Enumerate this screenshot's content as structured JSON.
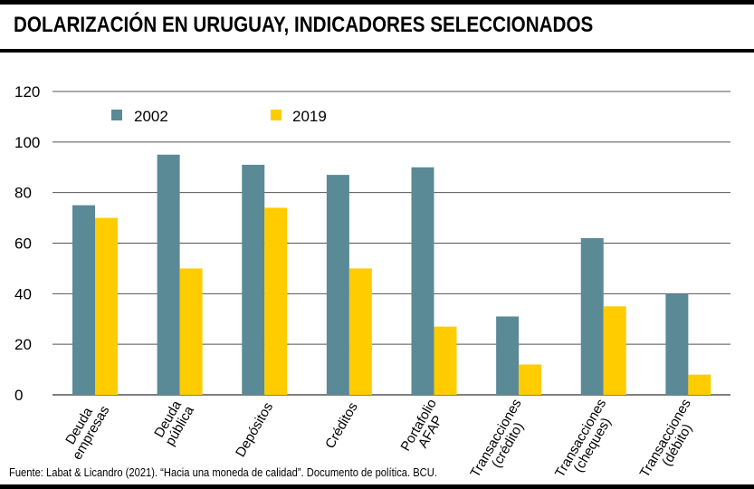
{
  "title": "DOLARIZACIÓN EN URUGUAY, INDICADORES SELECCIONADOS",
  "source": "Fuente: Labat & Licandro (2021). “Hacia una moneda de calidad”. Documento de política. BCU.",
  "colors": {
    "series_2002": "#5a8a96",
    "series_2019": "#ffcc00",
    "grid": "#555555"
  },
  "chart_data": {
    "type": "bar",
    "title": "DOLARIZACIÓN EN URUGUAY, INDICADORES SELECCIONADOS",
    "xlabel": "",
    "ylabel": "",
    "ylim": [
      0,
      120
    ],
    "yticks": [
      0,
      20,
      40,
      60,
      80,
      100,
      120
    ],
    "grid": true,
    "legend_position": "top-left",
    "categories": [
      [
        "Deuda",
        "empresas"
      ],
      [
        "Deuda",
        "pública"
      ],
      [
        "Depósitos"
      ],
      [
        "Créditos"
      ],
      [
        "Portafolio",
        "AFAP"
      ],
      [
        "Transacciones",
        "(crédito)"
      ],
      [
        "Transacciones",
        "(cheques)"
      ],
      [
        "Transacciones",
        "(débito)"
      ]
    ],
    "series": [
      {
        "name": "2002",
        "values": [
          75,
          95,
          91,
          87,
          90,
          31,
          62,
          40
        ]
      },
      {
        "name": "2019",
        "values": [
          70,
          50,
          74,
          50,
          27,
          12,
          35,
          8
        ]
      }
    ]
  }
}
